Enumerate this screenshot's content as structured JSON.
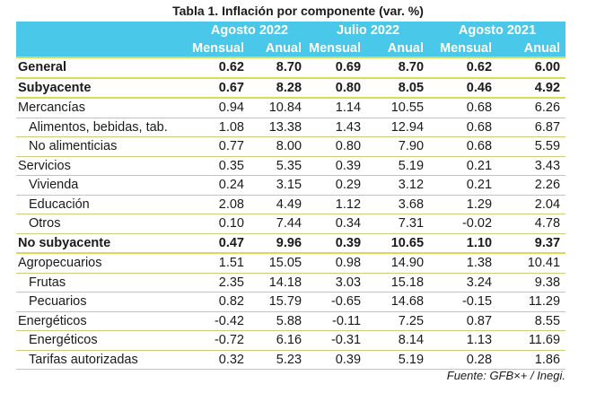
{
  "title": "Tabla 1. Inflación por componente (var. %)",
  "header": {
    "groups": [
      "Agosto 2022",
      "Julio 2022",
      "Agosto 2021"
    ],
    "subcols": [
      "Mensual",
      "Anual",
      "Mensual",
      "Anual",
      "Mensual",
      "Anual"
    ]
  },
  "rows": [
    {
      "label": "General",
      "values": [
        "0.62",
        "8.70",
        "0.69",
        "8.70",
        "0.62",
        "6.00"
      ]
    },
    {
      "label": "Subyacente",
      "values": [
        "0.67",
        "8.28",
        "0.80",
        "8.05",
        "0.46",
        "4.92"
      ]
    },
    {
      "label": "Mercancías",
      "values": [
        "0.94",
        "10.84",
        "1.14",
        "10.55",
        "0.68",
        "6.26"
      ]
    },
    {
      "label": "Alimentos, bebidas, tab.",
      "values": [
        "1.08",
        "13.38",
        "1.43",
        "12.94",
        "0.68",
        "6.87"
      ]
    },
    {
      "label": "No alimenticias",
      "values": [
        "0.77",
        "8.00",
        "0.80",
        "7.90",
        "0.68",
        "5.59"
      ]
    },
    {
      "label": "Servicios",
      "values": [
        "0.35",
        "5.35",
        "0.39",
        "5.19",
        "0.21",
        "3.43"
      ]
    },
    {
      "label": "Vivienda",
      "values": [
        "0.24",
        "3.15",
        "0.29",
        "3.12",
        "0.21",
        "2.26"
      ]
    },
    {
      "label": "Educación",
      "values": [
        "2.08",
        "4.49",
        "1.12",
        "3.68",
        "1.29",
        "2.04"
      ]
    },
    {
      "label": "Otros",
      "values": [
        "0.10",
        "7.44",
        "0.34",
        "7.31",
        "-0.02",
        "4.78"
      ]
    },
    {
      "label": "No subyacente",
      "values": [
        "0.47",
        "9.96",
        "0.39",
        "10.65",
        "1.10",
        "9.37"
      ]
    },
    {
      "label": "Agropecuarios",
      "values": [
        "1.51",
        "15.05",
        "0.98",
        "14.90",
        "1.38",
        "10.41"
      ]
    },
    {
      "label": "Frutas",
      "values": [
        "2.35",
        "14.18",
        "3.03",
        "15.18",
        "3.24",
        "9.38"
      ]
    },
    {
      "label": "Pecuarios",
      "values": [
        "0.82",
        "15.79",
        "-0.65",
        "14.68",
        "-0.15",
        "11.29"
      ]
    },
    {
      "label": "Energéticos",
      "values": [
        "-0.42",
        "5.88",
        "-0.11",
        "7.25",
        "0.87",
        "8.55"
      ]
    },
    {
      "label": "Energéticos",
      "values": [
        "-0.72",
        "6.16",
        "-0.31",
        "8.14",
        "1.13",
        "11.69"
      ]
    },
    {
      "label": "Tarifas autorizadas",
      "values": [
        "0.32",
        "5.23",
        "0.39",
        "5.19",
        "0.28",
        "1.86"
      ]
    }
  ],
  "source": "Fuente: GFB×+ /  Inegi."
}
